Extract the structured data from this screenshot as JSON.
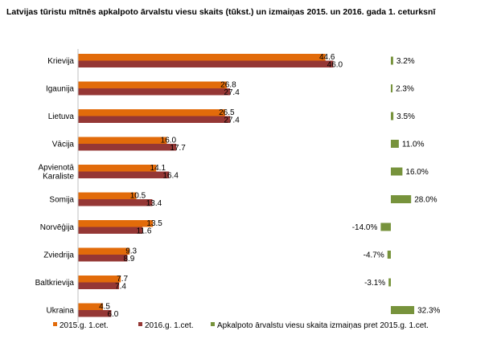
{
  "chart_data": {
    "type": "bar",
    "title": "Latvijas tūristu mītnēs apkalpoto ārvalstu viesu skaits (tūkst.) un izmaiņas 2015. un 2016. gada 1. ceturksnī",
    "categories": [
      [
        "Krievija"
      ],
      [
        "Igaunija"
      ],
      [
        "Lietuva"
      ],
      [
        "Vācija"
      ],
      [
        "Apvienotā",
        "Karaliste"
      ],
      [
        "Somija"
      ],
      [
        "Norvēģija"
      ],
      [
        "Zviedrija"
      ],
      [
        "Baltkrievija"
      ],
      [
        "Ukraina"
      ]
    ],
    "series": [
      {
        "name": "2015.g. 1.cet.",
        "values": [
          44.6,
          26.8,
          26.5,
          16.0,
          14.1,
          10.5,
          13.5,
          9.3,
          7.7,
          4.5
        ],
        "labels": [
          "44.6",
          "26.8",
          "26.5",
          "16.0",
          "14.1",
          "10.5",
          "13.5",
          "9.3",
          "7.7",
          "4.5"
        ],
        "color": "#E26B0A"
      },
      {
        "name": "2016.g. 1.cet.",
        "values": [
          46.0,
          27.4,
          27.4,
          17.7,
          16.4,
          13.4,
          11.6,
          8.9,
          7.4,
          6.0
        ],
        "labels": [
          "46.0",
          "27.4",
          "27.4",
          "17.7",
          "16.4",
          "13.4",
          "11.6",
          "8.9",
          "7.4",
          "6.0"
        ],
        "color": "#953735"
      },
      {
        "name": "Apkalpoto ārvalstu viesu skaita izmaiņas pret 2015.g. 1.cet.",
        "values": [
          3.2,
          2.3,
          3.5,
          11.0,
          16.0,
          28.0,
          -14.0,
          -4.7,
          -3.1,
          32.3
        ],
        "labels": [
          "3.2%",
          "2.3%",
          "3.5%",
          "11.0%",
          "16.0%",
          "28.0%",
          "-14.0%",
          "-4.7%",
          "-3.1%",
          "32.3%"
        ],
        "color": "#77933C"
      }
    ],
    "grid": false,
    "legend_position": "bottom"
  }
}
